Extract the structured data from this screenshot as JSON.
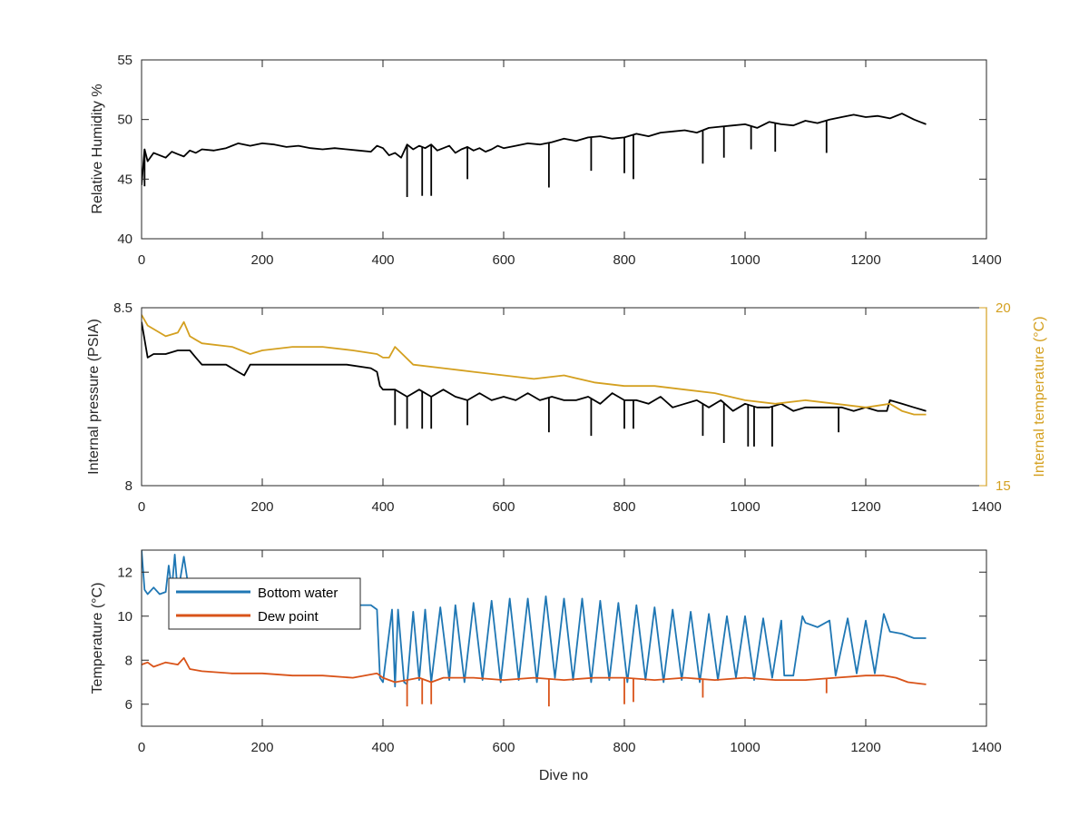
{
  "figure": {
    "background": "#ffffff"
  },
  "chart_data": [
    {
      "type": "line",
      "xlabel": "",
      "ylabel": "Relative Humidity %",
      "xlim": [
        0,
        1400
      ],
      "ylim": [
        40,
        55
      ],
      "xticks": [
        0,
        200,
        400,
        600,
        800,
        1000,
        1200,
        1400
      ],
      "yticks": [
        40,
        45,
        50,
        55
      ],
      "grid": false,
      "series": [
        {
          "color": "#000000",
          "x": [
            0,
            5,
            10,
            20,
            30,
            40,
            50,
            60,
            70,
            80,
            90,
            100,
            120,
            140,
            160,
            180,
            200,
            220,
            240,
            260,
            280,
            300,
            320,
            340,
            360,
            380,
            390,
            400,
            410,
            420,
            430,
            440,
            450,
            460,
            470,
            480,
            490,
            500,
            510,
            520,
            530,
            540,
            550,
            560,
            570,
            580,
            590,
            600,
            620,
            640,
            660,
            680,
            700,
            720,
            740,
            760,
            780,
            800,
            820,
            840,
            860,
            880,
            900,
            920,
            940,
            960,
            980,
            1000,
            1020,
            1040,
            1060,
            1080,
            1100,
            1120,
            1140,
            1160,
            1180,
            1200,
            1220,
            1240,
            1260,
            1280,
            1300
          ],
          "y": [
            44.5,
            47.5,
            46.5,
            47.2,
            47.0,
            46.8,
            47.3,
            47.1,
            46.9,
            47.4,
            47.2,
            47.5,
            47.4,
            47.6,
            48.0,
            47.8,
            48.0,
            47.9,
            47.7,
            47.8,
            47.6,
            47.5,
            47.6,
            47.5,
            47.4,
            47.3,
            47.8,
            47.6,
            47.0,
            47.2,
            46.8,
            47.9,
            47.5,
            47.8,
            47.6,
            47.9,
            47.4,
            47.6,
            47.8,
            47.2,
            47.5,
            47.7,
            47.4,
            47.6,
            47.3,
            47.5,
            47.8,
            47.6,
            47.8,
            48.0,
            47.9,
            48.1,
            48.4,
            48.2,
            48.5,
            48.6,
            48.4,
            48.5,
            48.8,
            48.6,
            48.9,
            49.0,
            49.1,
            48.9,
            49.3,
            49.4,
            49.5,
            49.6,
            49.3,
            49.8,
            49.6,
            49.5,
            49.9,
            49.7,
            50.0,
            50.2,
            50.4,
            50.2,
            50.3,
            50.1,
            50.5,
            50.0,
            49.6
          ],
          "spikes": [
            [
              5,
              44.4
            ],
            [
              440,
              43.5
            ],
            [
              465,
              43.6
            ],
            [
              480,
              43.6
            ],
            [
              540,
              45.0
            ],
            [
              675,
              44.3
            ],
            [
              745,
              45.7
            ],
            [
              800,
              45.5
            ],
            [
              815,
              45.0
            ],
            [
              930,
              46.3
            ],
            [
              965,
              46.8
            ],
            [
              1010,
              47.5
            ],
            [
              1050,
              47.3
            ],
            [
              1135,
              47.2
            ]
          ]
        }
      ]
    },
    {
      "type": "line",
      "xlabel": "",
      "ylabel": "Internal pressure (PSIA)",
      "y2label": "Internal temperature (°C)",
      "xlim": [
        0,
        1400
      ],
      "ylim": [
        8,
        8.5
      ],
      "y2lim": [
        15,
        20
      ],
      "xticks": [
        0,
        200,
        400,
        600,
        800,
        1000,
        1200,
        1400
      ],
      "yticks": [
        8,
        8.5
      ],
      "y2ticks": [
        15,
        20
      ],
      "grid": false,
      "y2_color": "#d4a020",
      "series": [
        {
          "axis": "left",
          "color": "#000000",
          "x": [
            0,
            10,
            20,
            40,
            60,
            70,
            80,
            90,
            100,
            120,
            140,
            160,
            170,
            180,
            200,
            230,
            260,
            300,
            340,
            380,
            390,
            395,
            400,
            420,
            440,
            460,
            480,
            500,
            520,
            540,
            560,
            580,
            600,
            620,
            640,
            660,
            680,
            700,
            720,
            740,
            760,
            780,
            800,
            820,
            840,
            860,
            880,
            900,
            920,
            940,
            960,
            980,
            1000,
            1020,
            1040,
            1060,
            1080,
            1100,
            1120,
            1140,
            1160,
            1180,
            1200,
            1220,
            1235,
            1240,
            1260,
            1280,
            1300
          ],
          "y": [
            8.46,
            8.36,
            8.37,
            8.37,
            8.38,
            8.38,
            8.38,
            8.36,
            8.34,
            8.34,
            8.34,
            8.32,
            8.31,
            8.34,
            8.34,
            8.34,
            8.34,
            8.34,
            8.34,
            8.33,
            8.32,
            8.28,
            8.27,
            8.27,
            8.25,
            8.27,
            8.25,
            8.27,
            8.25,
            8.24,
            8.26,
            8.24,
            8.25,
            8.24,
            8.26,
            8.24,
            8.25,
            8.24,
            8.24,
            8.25,
            8.23,
            8.26,
            8.24,
            8.24,
            8.23,
            8.25,
            8.22,
            8.23,
            8.24,
            8.22,
            8.24,
            8.21,
            8.23,
            8.22,
            8.22,
            8.23,
            8.21,
            8.22,
            8.22,
            8.22,
            8.22,
            8.21,
            8.22,
            8.21,
            8.21,
            8.24,
            8.23,
            8.22,
            8.21
          ],
          "spikes": [
            [
              420,
              8.17
            ],
            [
              440,
              8.16
            ],
            [
              465,
              8.16
            ],
            [
              480,
              8.16
            ],
            [
              540,
              8.17
            ],
            [
              675,
              8.15
            ],
            [
              745,
              8.14
            ],
            [
              800,
              8.16
            ],
            [
              815,
              8.16
            ],
            [
              930,
              8.14
            ],
            [
              965,
              8.12
            ],
            [
              1005,
              8.11
            ],
            [
              1015,
              8.11
            ],
            [
              1045,
              8.11
            ],
            [
              1155,
              8.15
            ]
          ]
        },
        {
          "axis": "right",
          "color": "#d4a020",
          "x": [
            0,
            10,
            20,
            40,
            60,
            70,
            80,
            90,
            100,
            150,
            180,
            200,
            250,
            300,
            350,
            390,
            400,
            410,
            420,
            450,
            500,
            550,
            600,
            650,
            700,
            750,
            800,
            850,
            900,
            950,
            1000,
            1050,
            1100,
            1150,
            1200,
            1240,
            1260,
            1280,
            1300
          ],
          "y": [
            19.8,
            19.5,
            19.4,
            19.2,
            19.3,
            19.6,
            19.2,
            19.1,
            19.0,
            18.9,
            18.7,
            18.8,
            18.9,
            18.9,
            18.8,
            18.7,
            18.6,
            18.6,
            18.9,
            18.4,
            18.3,
            18.2,
            18.1,
            18.0,
            18.1,
            17.9,
            17.8,
            17.8,
            17.7,
            17.6,
            17.4,
            17.3,
            17.4,
            17.3,
            17.2,
            17.3,
            17.1,
            17.0,
            17.0
          ]
        }
      ]
    },
    {
      "type": "line",
      "xlabel": "Dive no",
      "ylabel": "Temperature (°C)",
      "xlim": [
        0,
        1400
      ],
      "ylim": [
        5,
        13
      ],
      "xticks": [
        0,
        200,
        400,
        600,
        800,
        1000,
        1200,
        1400
      ],
      "yticks": [
        6,
        8,
        10,
        12
      ],
      "grid": false,
      "legend": "top-left",
      "series": [
        {
          "name": "Bottom water",
          "color": "#1f77b4",
          "x": [
            0,
            5,
            10,
            20,
            30,
            40,
            45,
            50,
            55,
            60,
            70,
            80,
            100,
            120,
            150,
            200,
            250,
            300,
            350,
            380,
            390,
            395,
            400,
            415,
            420,
            425,
            435,
            440,
            450,
            460,
            470,
            480,
            495,
            510,
            520,
            535,
            550,
            565,
            580,
            595,
            610,
            625,
            640,
            655,
            670,
            685,
            700,
            715,
            730,
            745,
            760,
            775,
            790,
            805,
            820,
            835,
            850,
            865,
            880,
            895,
            910,
            925,
            940,
            955,
            970,
            985,
            1000,
            1015,
            1030,
            1045,
            1060,
            1065,
            1080,
            1095,
            1100,
            1120,
            1140,
            1150,
            1170,
            1185,
            1200,
            1215,
            1230,
            1240,
            1260,
            1280,
            1300
          ],
          "y": [
            13.0,
            11.2,
            11.0,
            11.3,
            11.0,
            11.1,
            12.3,
            11.2,
            12.8,
            11.0,
            12.7,
            10.9,
            10.9,
            10.8,
            10.8,
            10.7,
            10.6,
            10.6,
            10.5,
            10.5,
            10.3,
            7.2,
            7.0,
            10.3,
            6.8,
            10.3,
            7.0,
            6.9,
            10.2,
            7.1,
            10.3,
            7.0,
            10.4,
            7.1,
            10.5,
            7.0,
            10.6,
            7.1,
            10.7,
            7.0,
            10.8,
            7.1,
            10.8,
            7.0,
            10.9,
            7.2,
            10.8,
            7.1,
            10.8,
            7.0,
            10.7,
            7.1,
            10.6,
            7.0,
            10.5,
            7.1,
            10.4,
            7.0,
            10.3,
            7.1,
            10.2,
            7.0,
            10.1,
            7.1,
            10.0,
            7.2,
            10.0,
            7.1,
            9.9,
            7.2,
            9.8,
            7.3,
            7.3,
            10.0,
            9.7,
            9.5,
            9.8,
            7.3,
            9.9,
            7.4,
            9.8,
            7.4,
            10.1,
            9.3,
            9.2,
            9.0,
            9.0
          ]
        },
        {
          "name": "Dew point",
          "color": "#d95319",
          "x": [
            0,
            10,
            20,
            40,
            60,
            70,
            80,
            100,
            150,
            200,
            250,
            300,
            350,
            390,
            400,
            420,
            440,
            460,
            480,
            500,
            550,
            600,
            650,
            700,
            750,
            800,
            850,
            900,
            950,
            1000,
            1050,
            1100,
            1150,
            1200,
            1230,
            1250,
            1270,
            1300
          ],
          "y": [
            7.8,
            7.9,
            7.7,
            7.9,
            7.8,
            8.1,
            7.6,
            7.5,
            7.4,
            7.4,
            7.3,
            7.3,
            7.2,
            7.4,
            7.2,
            7.0,
            7.1,
            7.2,
            7.0,
            7.2,
            7.2,
            7.1,
            7.2,
            7.1,
            7.2,
            7.2,
            7.1,
            7.2,
            7.1,
            7.2,
            7.1,
            7.1,
            7.2,
            7.3,
            7.3,
            7.2,
            7.0,
            6.9
          ],
          "spikes": [
            [
              440,
              5.9
            ],
            [
              465,
              6.0
            ],
            [
              480,
              6.0
            ],
            [
              675,
              5.9
            ],
            [
              800,
              6.0
            ],
            [
              815,
              6.1
            ],
            [
              930,
              6.3
            ],
            [
              1135,
              6.5
            ]
          ]
        }
      ]
    }
  ]
}
